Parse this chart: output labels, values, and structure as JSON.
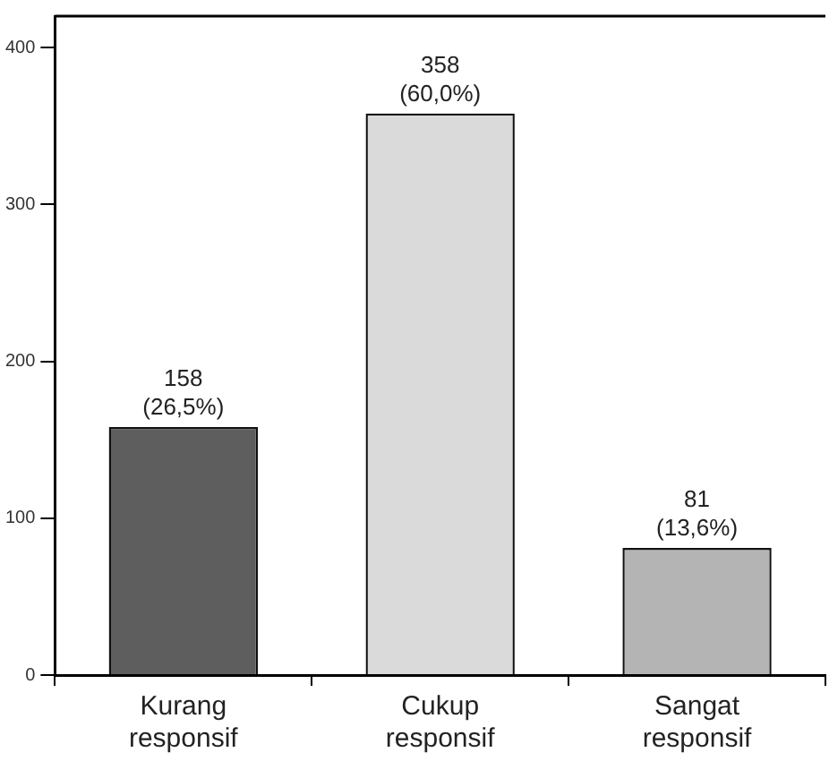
{
  "chart_data": {
    "type": "bar",
    "categories": [
      "Kurang\nresponsif",
      "Cukup\nresponsif",
      "Sangat\nresponsif"
    ],
    "values": [
      158,
      358,
      81
    ],
    "colors": [
      "#5e5e5e",
      "#dadada",
      "#b4b4b4"
    ],
    "value_labels": [
      "158\n(26,5%)",
      "358\n(60,0%)",
      "81\n(13,6%)"
    ],
    "ylim": [
      0,
      420
    ],
    "yticks": [
      0,
      100,
      200,
      300,
      400
    ],
    "grid": false,
    "legend": false
  }
}
